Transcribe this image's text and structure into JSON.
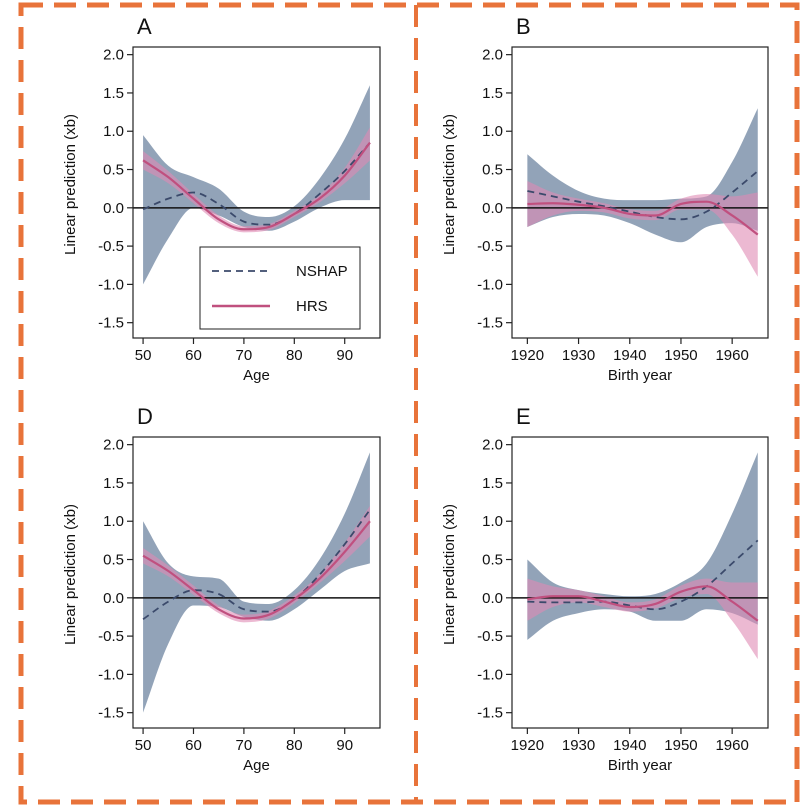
{
  "colors": {
    "frame": "#e8733a",
    "nshap_line": "#3b4a6b",
    "nshap_band": "#7f93ab",
    "hrs_line": "#c0507f",
    "hrs_band": "#e08ab4",
    "zero_line": "#111111"
  },
  "legend": {
    "entries": [
      "NSHAP",
      "HRS"
    ],
    "placement": "panel-A-lower-right"
  },
  "chart_data": [
    {
      "id": "A",
      "type": "line",
      "panel_label": "A",
      "xlabel": "Age",
      "ylabel": "Linear prediction (xb)",
      "xlim": [
        48,
        97
      ],
      "ylim": [
        -1.7,
        2.1
      ],
      "xticks": [
        50,
        60,
        70,
        80,
        90
      ],
      "yticks": [
        -1.5,
        -1.0,
        -0.5,
        0.0,
        0.5,
        1.0,
        1.5,
        2.0
      ],
      "ytick_labels": [
        "-1.5",
        "-1.0",
        "-0.5",
        "0.0",
        "0.5",
        "1.0",
        "1.5",
        "2.0"
      ],
      "series": [
        {
          "name": "NSHAP",
          "x": [
            50,
            55,
            60,
            65,
            70,
            75,
            80,
            85,
            90,
            95
          ],
          "y": [
            -0.02,
            0.12,
            0.2,
            0.05,
            -0.18,
            -0.22,
            -0.08,
            0.18,
            0.48,
            0.85
          ],
          "lower": [
            -1.0,
            -0.4,
            0.0,
            -0.1,
            -0.25,
            -0.3,
            -0.18,
            0.0,
            0.1,
            0.1
          ],
          "upper": [
            0.95,
            0.55,
            0.4,
            0.25,
            -0.05,
            -0.12,
            0.02,
            0.38,
            0.9,
            1.6
          ]
        },
        {
          "name": "HRS",
          "x": [
            50,
            55,
            60,
            65,
            70,
            75,
            80,
            85,
            90,
            95
          ],
          "y": [
            0.62,
            0.4,
            0.12,
            -0.15,
            -0.28,
            -0.25,
            -0.08,
            0.12,
            0.42,
            0.85
          ],
          "lower": [
            0.5,
            0.32,
            0.06,
            -0.2,
            -0.32,
            -0.29,
            -0.12,
            0.07,
            0.32,
            0.62
          ],
          "upper": [
            0.74,
            0.48,
            0.18,
            -0.1,
            -0.24,
            -0.21,
            -0.04,
            0.17,
            0.52,
            1.05
          ]
        }
      ]
    },
    {
      "id": "B",
      "type": "line",
      "panel_label": "B",
      "xlabel": "Birth year",
      "ylabel": "Linear prediction (xb)",
      "xlim": [
        1917,
        1967
      ],
      "ylim": [
        -1.7,
        2.1
      ],
      "xticks": [
        1920,
        1930,
        1940,
        1950,
        1960
      ],
      "yticks": [
        -1.5,
        -1.0,
        -0.5,
        0.0,
        0.5,
        1.0,
        1.5,
        2.0
      ],
      "ytick_labels": [
        "-1.5",
        "-1.0",
        "-0.5",
        "0.0",
        "0.5",
        "1.0",
        "1.5",
        "2.0"
      ],
      "series": [
        {
          "name": "NSHAP",
          "x": [
            1920,
            1925,
            1930,
            1935,
            1940,
            1945,
            1950,
            1955,
            1960,
            1965
          ],
          "y": [
            0.22,
            0.15,
            0.08,
            0.02,
            -0.05,
            -0.12,
            -0.15,
            -0.05,
            0.2,
            0.48
          ],
          "lower": [
            -0.25,
            -0.12,
            -0.08,
            -0.1,
            -0.2,
            -0.35,
            -0.45,
            -0.25,
            -0.2,
            -0.3
          ],
          "upper": [
            0.7,
            0.42,
            0.22,
            0.12,
            0.1,
            0.1,
            0.12,
            0.15,
            0.6,
            1.3
          ]
        },
        {
          "name": "HRS",
          "x": [
            1920,
            1925,
            1930,
            1935,
            1940,
            1945,
            1950,
            1955,
            1960,
            1965
          ],
          "y": [
            0.05,
            0.06,
            0.04,
            0.0,
            -0.08,
            -0.1,
            0.05,
            0.08,
            -0.1,
            -0.35
          ],
          "lower": [
            -0.25,
            -0.1,
            -0.04,
            -0.06,
            -0.14,
            -0.16,
            -0.02,
            -0.02,
            -0.35,
            -0.9
          ],
          "upper": [
            0.35,
            0.2,
            0.12,
            0.06,
            -0.02,
            -0.04,
            0.12,
            0.18,
            0.15,
            0.2
          ]
        }
      ]
    },
    {
      "id": "D",
      "type": "line",
      "panel_label": "D",
      "xlabel": "Age",
      "ylabel": "Linear prediction (xb)",
      "xlim": [
        48,
        97
      ],
      "ylim": [
        -1.7,
        2.1
      ],
      "xticks": [
        50,
        60,
        70,
        80,
        90
      ],
      "yticks": [
        -1.5,
        -1.0,
        -0.5,
        0.0,
        0.5,
        1.0,
        1.5,
        2.0
      ],
      "ytick_labels": [
        "-1.5",
        "-1.0",
        "-0.5",
        "0.0",
        "0.5",
        "1.0",
        "1.5",
        "2.0"
      ],
      "series": [
        {
          "name": "NSHAP",
          "x": [
            50,
            55,
            60,
            65,
            70,
            75,
            80,
            85,
            90,
            95
          ],
          "y": [
            -0.28,
            -0.05,
            0.1,
            0.05,
            -0.15,
            -0.18,
            -0.02,
            0.3,
            0.7,
            1.15
          ],
          "lower": [
            -1.5,
            -0.6,
            -0.1,
            -0.12,
            -0.25,
            -0.3,
            -0.15,
            0.1,
            0.35,
            0.45
          ],
          "upper": [
            1.0,
            0.45,
            0.28,
            0.25,
            -0.05,
            -0.08,
            0.1,
            0.5,
            1.1,
            1.9
          ]
        },
        {
          "name": "HRS",
          "x": [
            50,
            55,
            60,
            65,
            70,
            75,
            80,
            85,
            90,
            95
          ],
          "y": [
            0.55,
            0.35,
            0.1,
            -0.15,
            -0.27,
            -0.22,
            -0.02,
            0.25,
            0.6,
            1.0
          ],
          "lower": [
            0.45,
            0.28,
            0.04,
            -0.2,
            -0.32,
            -0.27,
            -0.07,
            0.19,
            0.48,
            0.8
          ],
          "upper": [
            0.65,
            0.42,
            0.16,
            -0.1,
            -0.22,
            -0.17,
            0.03,
            0.31,
            0.72,
            1.2
          ]
        }
      ]
    },
    {
      "id": "E",
      "type": "line",
      "panel_label": "E",
      "xlabel": "Birth year",
      "ylabel": "Linear prediction (xb)",
      "xlim": [
        1917,
        1967
      ],
      "ylim": [
        -1.7,
        2.1
      ],
      "xticks": [
        1920,
        1930,
        1940,
        1950,
        1960
      ],
      "yticks": [
        -1.5,
        -1.0,
        -0.5,
        0.0,
        0.5,
        1.0,
        1.5,
        2.0
      ],
      "ytick_labels": [
        "-1.5",
        "-1.0",
        "-0.5",
        "0.0",
        "0.5",
        "1.0",
        "1.5",
        "2.0"
      ],
      "series": [
        {
          "name": "NSHAP",
          "x": [
            1920,
            1925,
            1930,
            1935,
            1940,
            1945,
            1950,
            1955,
            1960,
            1965
          ],
          "y": [
            -0.05,
            -0.06,
            -0.06,
            -0.05,
            -0.1,
            -0.15,
            -0.05,
            0.15,
            0.45,
            0.75
          ],
          "lower": [
            -0.55,
            -0.3,
            -0.2,
            -0.15,
            -0.18,
            -0.3,
            -0.3,
            -0.15,
            -0.2,
            -0.35
          ],
          "upper": [
            0.5,
            0.2,
            0.1,
            0.05,
            0.02,
            0.05,
            0.2,
            0.45,
            1.1,
            1.9
          ]
        },
        {
          "name": "HRS",
          "x": [
            1920,
            1925,
            1930,
            1935,
            1940,
            1945,
            1950,
            1955,
            1960,
            1965
          ],
          "y": [
            -0.02,
            0.02,
            0.02,
            -0.05,
            -0.12,
            -0.08,
            0.08,
            0.15,
            -0.05,
            -0.3
          ],
          "lower": [
            -0.3,
            -0.12,
            -0.06,
            -0.12,
            -0.18,
            -0.14,
            0.0,
            0.05,
            -0.3,
            -0.8
          ],
          "upper": [
            0.25,
            0.15,
            0.1,
            0.02,
            -0.06,
            -0.02,
            0.16,
            0.25,
            0.2,
            0.2
          ]
        }
      ]
    }
  ]
}
